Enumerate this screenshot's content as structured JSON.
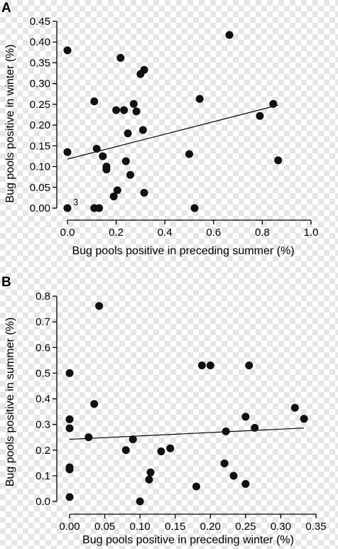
{
  "chart_data": [
    {
      "panel": "A",
      "type": "scatter",
      "xlabel": "Bug pools positive in preceding summer (%)",
      "ylabel": "Bug pools positive in winter (%)",
      "xlim": [
        0,
        1.0
      ],
      "ylim": [
        0,
        0.45
      ],
      "xticks": [
        "0.0",
        "0.2",
        "0.4",
        "0.6",
        "0.8",
        "1.0"
      ],
      "yticks": [
        "0.00",
        "0.05",
        "0.10",
        "0.15",
        "0.20",
        "0.25",
        "0.30",
        "0.35",
        "0.40",
        "0.45"
      ],
      "points": [
        {
          "x": 0.0,
          "y": 0.38
        },
        {
          "x": 0.0,
          "y": 0.135
        },
        {
          "x": 0.0,
          "y": 0.0
        },
        {
          "x": 0.11,
          "y": 0.257
        },
        {
          "x": 0.11,
          "y": 0.0
        },
        {
          "x": 0.13,
          "y": 0.0
        },
        {
          "x": 0.12,
          "y": 0.143
        },
        {
          "x": 0.145,
          "y": 0.125
        },
        {
          "x": 0.16,
          "y": 0.1
        },
        {
          "x": 0.16,
          "y": 0.093
        },
        {
          "x": 0.19,
          "y": 0.028
        },
        {
          "x": 0.2,
          "y": 0.236
        },
        {
          "x": 0.205,
          "y": 0.043
        },
        {
          "x": 0.218,
          "y": 0.362
        },
        {
          "x": 0.232,
          "y": 0.236
        },
        {
          "x": 0.24,
          "y": 0.113
        },
        {
          "x": 0.248,
          "y": 0.18
        },
        {
          "x": 0.258,
          "y": 0.08
        },
        {
          "x": 0.272,
          "y": 0.251
        },
        {
          "x": 0.283,
          "y": 0.233
        },
        {
          "x": 0.3,
          "y": 0.323
        },
        {
          "x": 0.31,
          "y": 0.188
        },
        {
          "x": 0.315,
          "y": 0.333
        },
        {
          "x": 0.315,
          "y": 0.037
        },
        {
          "x": 0.5,
          "y": 0.13
        },
        {
          "x": 0.522,
          "y": 0.0
        },
        {
          "x": 0.543,
          "y": 0.263
        },
        {
          "x": 0.665,
          "y": 0.417
        },
        {
          "x": 0.79,
          "y": 0.222
        },
        {
          "x": 0.845,
          "y": 0.251
        },
        {
          "x": 0.865,
          "y": 0.115
        }
      ],
      "trendline": {
        "x": [
          0.0,
          0.865
        ],
        "y": [
          0.118,
          0.248
        ]
      },
      "annotations": [
        {
          "x": 0.0,
          "y": 0.0,
          "text": "3"
        }
      ]
    },
    {
      "panel": "B",
      "type": "scatter",
      "xlabel": "Bug pools positive in preceding winter (%)",
      "ylabel": "Bug pools positive in summer (%)",
      "xlim": [
        0,
        0.35
      ],
      "ylim": [
        0,
        0.8
      ],
      "xticks": [
        "0.00",
        "0.05",
        "0.10",
        "0.15",
        "0.20",
        "0.25",
        "0.30",
        "0.35"
      ],
      "yticks": [
        "0.0",
        "0.1",
        "0.2",
        "0.3",
        "0.4",
        "0.5",
        "0.6",
        "0.7",
        "0.8"
      ],
      "points": [
        {
          "x": 0.0,
          "y": 0.5
        },
        {
          "x": 0.0,
          "y": 0.32
        },
        {
          "x": 0.0,
          "y": 0.285
        },
        {
          "x": 0.0,
          "y": 0.133
        },
        {
          "x": 0.0,
          "y": 0.125
        },
        {
          "x": 0.0,
          "y": 0.017
        },
        {
          "x": 0.035,
          "y": 0.38
        },
        {
          "x": 0.042,
          "y": 0.762
        },
        {
          "x": 0.027,
          "y": 0.25
        },
        {
          "x": 0.08,
          "y": 0.2
        },
        {
          "x": 0.09,
          "y": 0.242
        },
        {
          "x": 0.1,
          "y": 0.0
        },
        {
          "x": 0.113,
          "y": 0.085
        },
        {
          "x": 0.115,
          "y": 0.113
        },
        {
          "x": 0.13,
          "y": 0.195
        },
        {
          "x": 0.143,
          "y": 0.207
        },
        {
          "x": 0.18,
          "y": 0.058
        },
        {
          "x": 0.188,
          "y": 0.53
        },
        {
          "x": 0.2,
          "y": 0.53
        },
        {
          "x": 0.22,
          "y": 0.148
        },
        {
          "x": 0.222,
          "y": 0.273
        },
        {
          "x": 0.233,
          "y": 0.1
        },
        {
          "x": 0.25,
          "y": 0.068
        },
        {
          "x": 0.25,
          "y": 0.33
        },
        {
          "x": 0.255,
          "y": 0.53
        },
        {
          "x": 0.263,
          "y": 0.287
        },
        {
          "x": 0.32,
          "y": 0.365
        },
        {
          "x": 0.333,
          "y": 0.322
        }
      ],
      "trendline": {
        "x": [
          0.0,
          0.333
        ],
        "y": [
          0.242,
          0.286
        ]
      }
    }
  ]
}
